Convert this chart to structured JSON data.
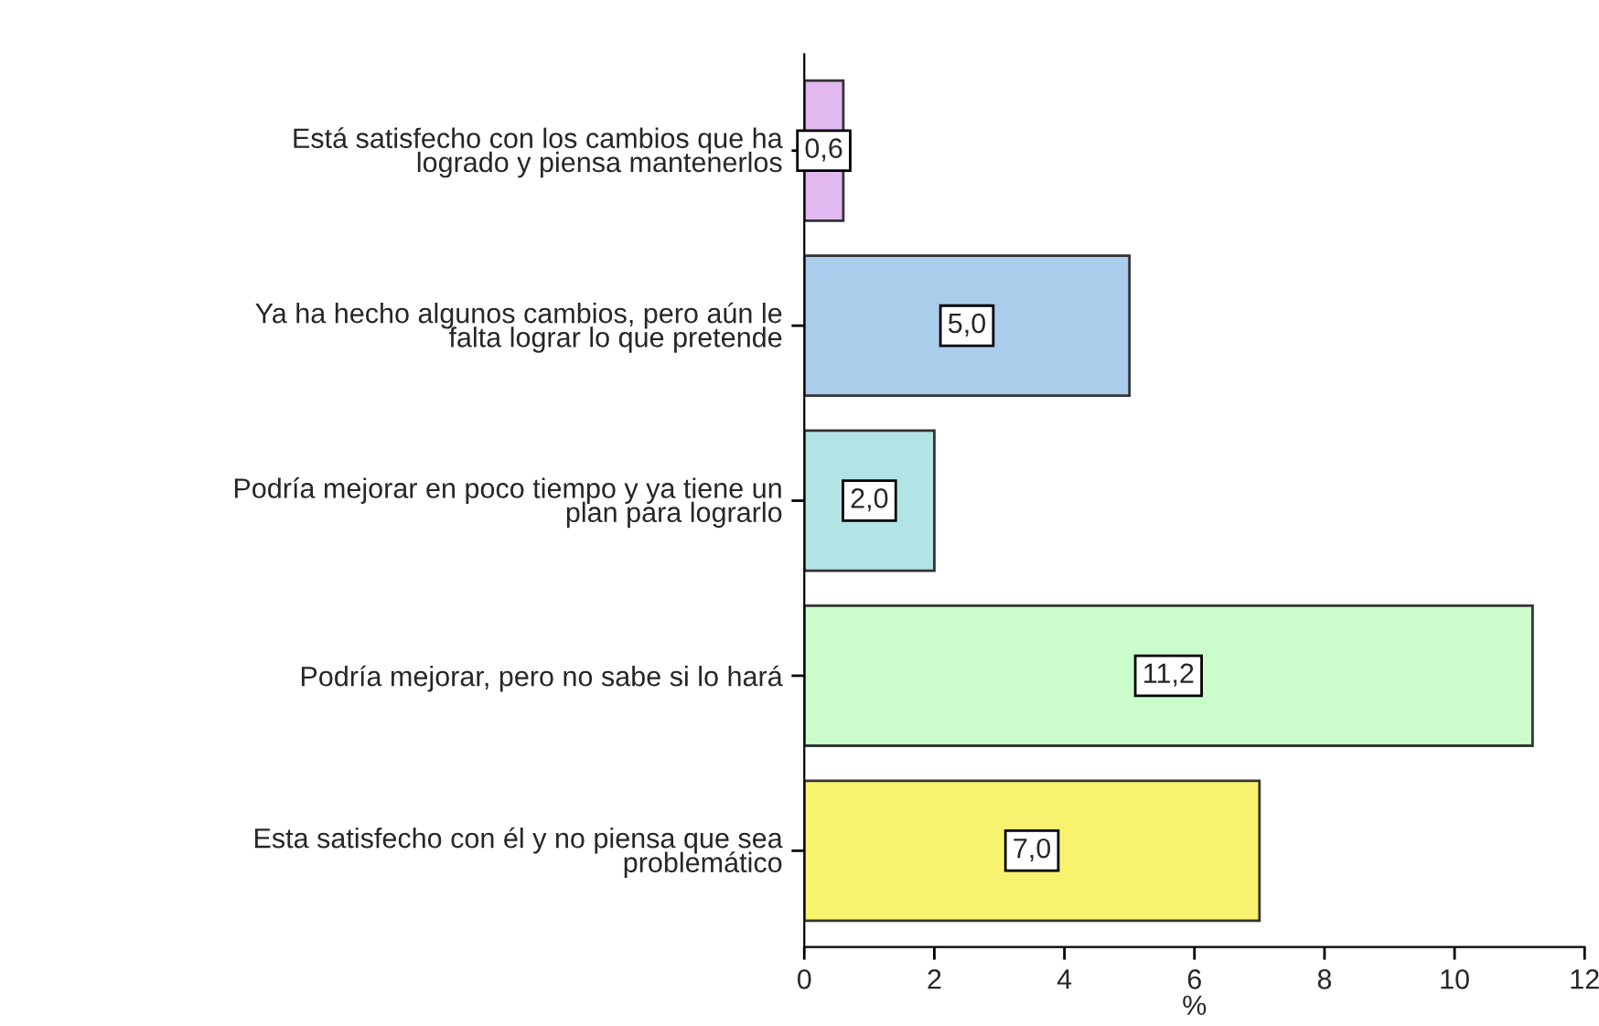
{
  "chart_data": {
    "type": "bar",
    "orientation": "horizontal",
    "xlabel": "%",
    "categories": [
      "Está satisfecho con los cambios que ha\nlogrado y piensa mantenerlos",
      "Ya ha hecho algunos cambios, pero aún le\nfalta lograr lo que pretende",
      "Podría mejorar en poco tiempo y ya tiene un\nplan para lograrlo",
      "Podría mejorar, pero no sabe si lo hará",
      "Esta satisfecho con él y no piensa que sea\nproblemático"
    ],
    "values": [
      0.6,
      5.0,
      2.0,
      11.2,
      7.0
    ],
    "value_labels": [
      "0,6",
      "5,0",
      "2,0",
      "11,2",
      "7,0"
    ],
    "colors": [
      "#e2b8f0",
      "#abcdec",
      "#b2e4e6",
      "#cbfccb",
      "#f8f36e"
    ],
    "xlim": [
      0,
      12
    ],
    "xticks": [
      0,
      2,
      4,
      6,
      8,
      10,
      12
    ]
  }
}
